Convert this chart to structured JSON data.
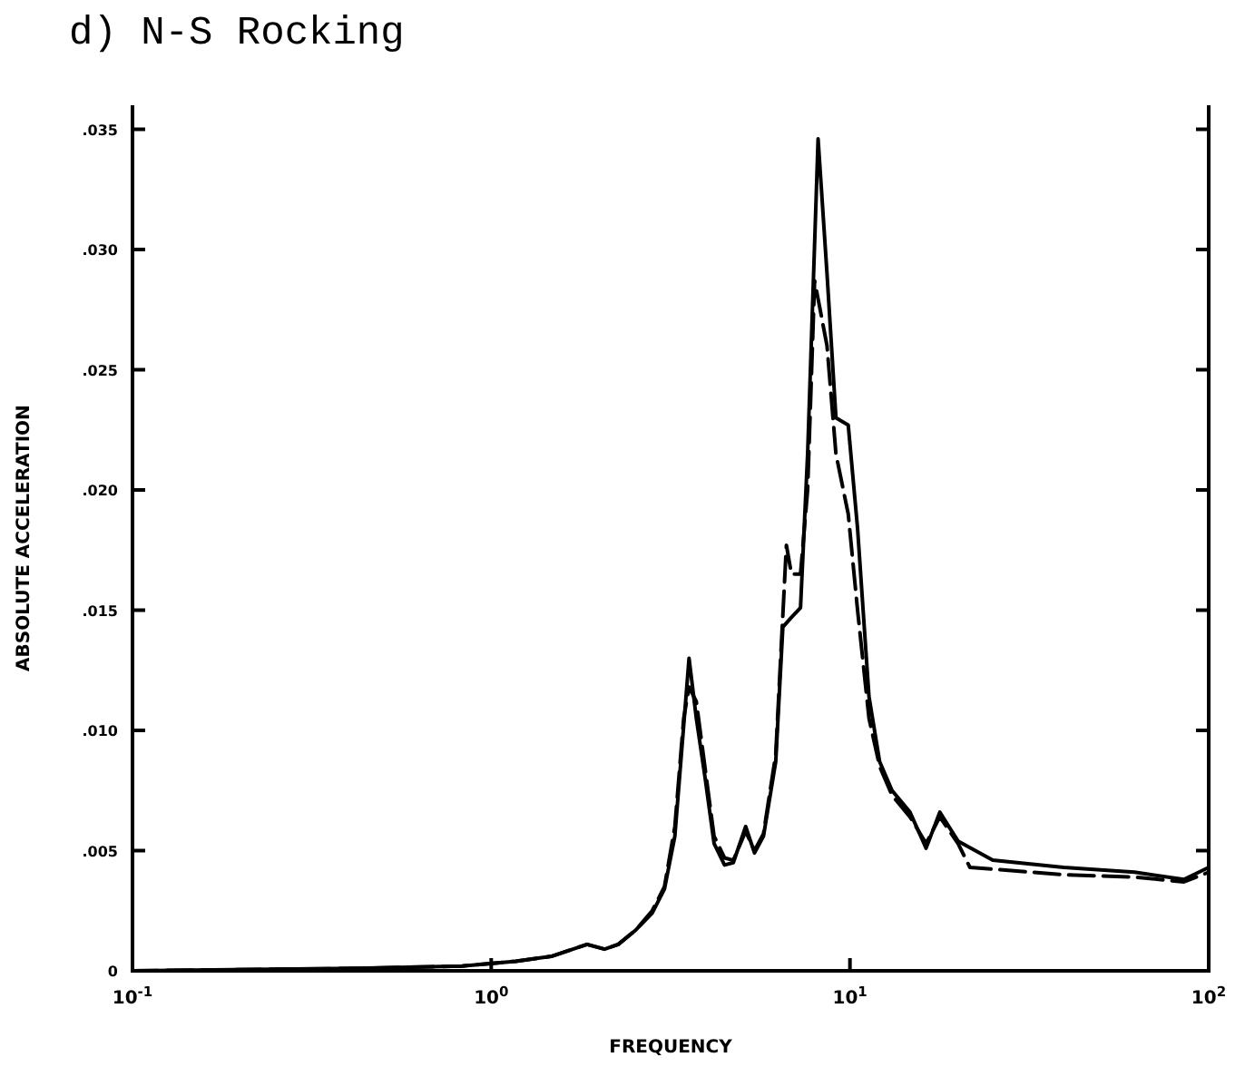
{
  "chart_data": {
    "type": "line",
    "title": "d)  N-S Rocking",
    "xlabel": "FREQUENCY",
    "ylabel": "ABSOLUTE ACCELERATION",
    "log": "x",
    "grid": false,
    "marker": "none",
    "xlim": [
      0.1,
      100
    ],
    "xticks": [
      {
        "value": 0.1,
        "label": "10$^{-1}$"
      },
      {
        "value": 1,
        "label": "10$^{0}$"
      },
      {
        "value": 10,
        "label": "10$^{1}$"
      },
      {
        "value": 100,
        "label": "10$^{2}$"
      }
    ],
    "ylim": [
      0,
      0.036
    ],
    "yticks": [
      {
        "value": 0,
        "label": "0"
      },
      {
        "value": 0.005,
        "label": ".005"
      },
      {
        "value": 0.01,
        "label": ".010"
      },
      {
        "value": 0.015,
        "label": ".015"
      },
      {
        "value": 0.02,
        "label": ".020"
      },
      {
        "value": 0.025,
        "label": ".025"
      },
      {
        "value": 0.03,
        "label": ".030"
      },
      {
        "value": 0.035,
        "label": ".035"
      }
    ],
    "series": [
      {
        "color": "#000000",
        "line_style": "solid",
        "x": [
          0.1,
          0.42,
          0.83,
          1.17,
          1.47,
          1.85,
          2.07,
          2.26,
          2.53,
          2.81,
          3.04,
          3.25,
          3.44,
          3.56,
          3.73,
          3.94,
          4.18,
          4.47,
          4.73,
          5.12,
          5.42,
          5.74,
          6.21,
          6.5,
          6.87,
          7.28,
          7.62,
          8.15,
          8.63,
          9.14,
          9.89,
          10.5,
          11.3,
          12.1,
          13.1,
          14.7,
          16.3,
          17.8,
          20,
          25,
          39.4,
          62.1,
          85.3,
          100
        ],
        "values": [
          0,
          0.0001,
          0.0002,
          0.0004,
          0.0006,
          0.0011,
          0.0009,
          0.0011,
          0.0017,
          0.0024,
          0.0034,
          0.0056,
          0.0102,
          0.013,
          0.0105,
          0.0081,
          0.0053,
          0.0044,
          0.0045,
          0.006,
          0.0049,
          0.0056,
          0.0087,
          0.0143,
          0.0147,
          0.0151,
          0.0215,
          0.0346,
          0.029,
          0.023,
          0.0227,
          0.0184,
          0.0114,
          0.0087,
          0.0075,
          0.0066,
          0.0051,
          0.0066,
          0.0054,
          0.0046,
          0.0043,
          0.0041,
          0.0038,
          0.0043
        ]
      },
      {
        "color": "#000000",
        "line_style": "dashed",
        "x": [
          0.1,
          0.42,
          0.83,
          1.17,
          1.47,
          1.85,
          2.07,
          2.26,
          2.53,
          2.81,
          3.04,
          3.25,
          3.44,
          3.56,
          3.73,
          3.94,
          4.18,
          4.47,
          4.73,
          5.12,
          5.42,
          5.74,
          6.21,
          6.65,
          6.87,
          7.28,
          7.62,
          7.97,
          8.63,
          9.14,
          9.89,
          10.5,
          11.3,
          12.1,
          13.1,
          14.7,
          16.3,
          17.8,
          20,
          21.6,
          39.4,
          62.1,
          85.3,
          100
        ],
        "values": [
          0,
          0.0001,
          0.0002,
          0.0004,
          0.0006,
          0.0011,
          0.0009,
          0.0011,
          0.0017,
          0.0025,
          0.0035,
          0.006,
          0.0105,
          0.0118,
          0.0112,
          0.0085,
          0.0056,
          0.0047,
          0.0046,
          0.0058,
          0.005,
          0.0057,
          0.009,
          0.0177,
          0.0165,
          0.0165,
          0.02,
          0.0287,
          0.026,
          0.0215,
          0.019,
          0.015,
          0.0105,
          0.0085,
          0.0073,
          0.0064,
          0.0053,
          0.0064,
          0.0053,
          0.0043,
          0.004,
          0.0039,
          0.0037,
          0.0041
        ]
      }
    ]
  }
}
